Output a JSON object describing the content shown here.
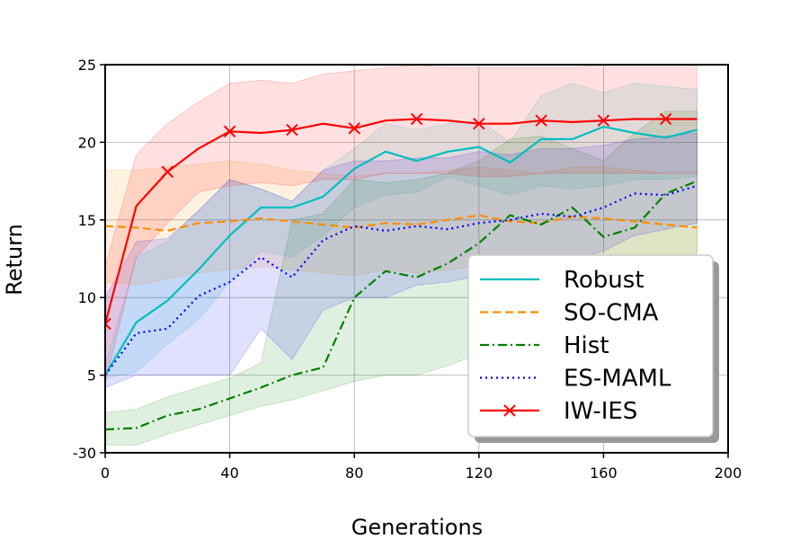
{
  "chart_data": {
    "type": "line",
    "xlabel": "Generations",
    "ylabel": "Return",
    "xlim": [
      0,
      200
    ],
    "x_ticks": [
      0,
      40,
      80,
      120,
      160,
      200
    ],
    "x_tick_labels": [
      "0",
      "40",
      "80",
      "120",
      "160",
      "200"
    ],
    "y_ticks": [
      -30,
      5,
      10,
      15,
      20,
      25
    ],
    "y_tick_labels": [
      "-30",
      "5",
      "10",
      "15",
      "20",
      "25"
    ],
    "y_axis_note": "tick labels printed as shown; bottom tick reads -30 at the position where 0 would fall on a linear scale",
    "ylim_plot_units": [
      0,
      25
    ],
    "grid": true,
    "legend_position": "lower-right",
    "x": [
      0,
      10,
      20,
      30,
      40,
      50,
      60,
      70,
      80,
      90,
      100,
      110,
      120,
      130,
      140,
      150,
      160,
      170,
      180,
      190
    ],
    "series": [
      {
        "name": "Robust",
        "color": "#00bfbf",
        "style": "solid",
        "values": [
          5.0,
          8.4,
          9.8,
          11.8,
          14.0,
          15.8,
          15.8,
          16.5,
          18.3,
          19.4,
          18.8,
          19.4,
          19.7,
          18.7,
          20.2,
          20.2,
          21.0,
          20.6,
          20.3,
          20.8
        ],
        "band_low": [
          4.8,
          5.2,
          7.0,
          8.6,
          11.0,
          13.0,
          12.6,
          14.0,
          15.8,
          16.6,
          16.8,
          17.8,
          17.2,
          16.6,
          17.2,
          17.0,
          17.2,
          17.6,
          17.6,
          17.8
        ],
        "band_high": [
          5.6,
          12.6,
          13.6,
          15.6,
          17.6,
          17.0,
          16.2,
          18.2,
          19.6,
          21.2,
          20.8,
          21.2,
          21.4,
          20.0,
          23.0,
          23.8,
          23.2,
          23.8,
          23.6,
          23.4
        ]
      },
      {
        "name": "SO-CMA",
        "color": "#ff8c00",
        "style": "dashed",
        "values": [
          14.6,
          14.5,
          14.3,
          14.8,
          14.9,
          15.1,
          14.9,
          14.7,
          14.5,
          14.8,
          14.7,
          15.0,
          15.3,
          14.9,
          14.8,
          15.2,
          15.1,
          14.9,
          14.7,
          14.5
        ],
        "band_low": [
          11.0,
          10.8,
          11.2,
          11.6,
          11.8,
          12.0,
          11.8,
          11.6,
          11.4,
          11.8,
          11.6,
          11.8,
          12.0,
          11.8,
          11.6,
          11.8,
          12.0,
          11.8,
          11.6,
          11.4
        ],
        "band_high": [
          18.2,
          18.2,
          18.4,
          18.6,
          18.8,
          18.6,
          18.2,
          18.0,
          17.8,
          18.0,
          18.0,
          18.2,
          18.4,
          18.2,
          18.0,
          18.4,
          18.4,
          18.2,
          18.0,
          18.0
        ]
      },
      {
        "name": "Hist",
        "color": "#008000",
        "style": "dashdot",
        "values": [
          1.5,
          1.6,
          2.4,
          2.8,
          3.5,
          4.2,
          5.0,
          5.5,
          10.0,
          11.7,
          11.3,
          12.2,
          13.5,
          15.3,
          14.7,
          15.8,
          13.9,
          14.5,
          16.7,
          17.5
        ],
        "band_low": [
          0.5,
          0.5,
          1.2,
          1.8,
          2.4,
          3.0,
          3.4,
          4.0,
          4.6,
          5.0,
          5.0,
          5.6,
          6.4,
          8.4,
          8.2,
          8.8,
          8.6,
          9.2,
          10.4,
          11.4
        ],
        "band_high": [
          2.6,
          2.8,
          3.6,
          4.2,
          4.8,
          5.8,
          15.0,
          15.4,
          17.6,
          17.4,
          17.6,
          18.0,
          18.8,
          20.2,
          20.4,
          19.6,
          18.8,
          20.6,
          22.0,
          22.0
        ]
      },
      {
        "name": "ES-MAML",
        "color": "#0000ff",
        "style": "dotted",
        "values": [
          5.0,
          7.7,
          8.0,
          10.1,
          11.0,
          12.6,
          11.3,
          13.7,
          14.6,
          14.3,
          14.6,
          14.4,
          14.8,
          15.0,
          15.4,
          15.2,
          15.8,
          16.7,
          16.6,
          17.2
        ],
        "band_low": [
          4.2,
          5.0,
          5.0,
          5.0,
          5.0,
          8.0,
          6.0,
          9.2,
          10.0,
          10.0,
          10.8,
          11.0,
          11.4,
          11.6,
          12.0,
          12.4,
          13.0,
          14.0,
          14.4,
          14.8
        ],
        "band_high": [
          10.0,
          13.6,
          13.8,
          15.6,
          17.6,
          17.0,
          16.2,
          18.2,
          18.8,
          18.8,
          19.0,
          19.0,
          19.4,
          19.2,
          19.6,
          19.6,
          19.8,
          20.2,
          20.4,
          20.6
        ]
      },
      {
        "name": "IW-IES",
        "color": "#ff0000",
        "style": "solid-x",
        "markers_at": [
          0,
          20,
          40,
          60,
          80,
          100,
          120,
          140,
          160,
          180
        ],
        "values": [
          8.3,
          15.9,
          18.1,
          19.6,
          20.7,
          20.6,
          20.8,
          21.2,
          20.9,
          21.4,
          21.5,
          21.4,
          21.2,
          21.2,
          21.4,
          21.3,
          21.4,
          21.5,
          21.5,
          21.5
        ],
        "band_low": [
          4.5,
          12.6,
          14.8,
          16.8,
          17.2,
          17.4,
          17.2,
          17.6,
          17.6,
          18.0,
          18.0,
          18.0,
          17.8,
          17.8,
          18.0,
          18.0,
          18.0,
          18.0,
          18.0,
          18.0
        ],
        "band_high": [
          12.0,
          19.2,
          21.2,
          22.6,
          23.8,
          24.0,
          23.8,
          24.4,
          24.6,
          24.8,
          25.0,
          24.8,
          24.8,
          24.8,
          24.8,
          24.8,
          25.0,
          25.0,
          25.0,
          25.0
        ]
      }
    ]
  }
}
